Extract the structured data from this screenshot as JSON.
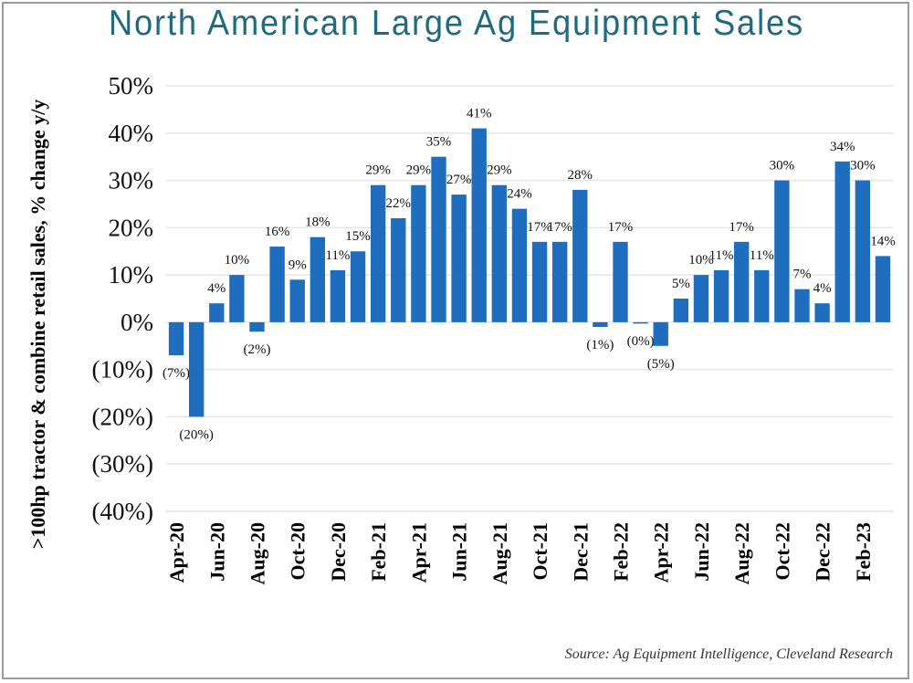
{
  "chart_data": {
    "type": "bar",
    "title": "North American Large Ag Equipment Sales",
    "xlabel": "",
    "ylabel": ">100hp tractor & combine retail sales, % change y/y",
    "source": "Source: Ag Equipment Intelligence, Cleveland Research",
    "ylim": [
      -40,
      50
    ],
    "y_ticks": [
      50,
      40,
      30,
      20,
      10,
      0,
      -10,
      -20,
      -30,
      -40
    ],
    "y_tick_labels": [
      "50%",
      "40%",
      "30%",
      "20%",
      "10%",
      "0%",
      "(10%)",
      "(20%)",
      "(30%)",
      "(40%)"
    ],
    "grid": true,
    "bar_color": "#1f6dbf",
    "categories": [
      "Apr-20",
      "May-20",
      "Jun-20",
      "Jul-20",
      "Aug-20",
      "Sep-20",
      "Oct-20",
      "Nov-20",
      "Dec-20",
      "Jan-21",
      "Feb-21",
      "Mar-21",
      "Apr-21",
      "May-21",
      "Jun-21",
      "Jul-21",
      "Aug-21",
      "Sep-21",
      "Oct-21",
      "Nov-21",
      "Dec-21",
      "Jan-22",
      "Feb-22",
      "Mar-22",
      "Apr-22",
      "May-22",
      "Jun-22",
      "Jul-22",
      "Aug-22",
      "Sep-22",
      "Oct-22",
      "Nov-22",
      "Dec-22",
      "Jan-23",
      "Feb-23",
      "Mar-23"
    ],
    "x_tick_labels": [
      "Apr-20",
      "Jun-20",
      "Aug-20",
      "Oct-20",
      "Dec-20",
      "Feb-21",
      "Apr-21",
      "Jun-21",
      "Aug-21",
      "Oct-21",
      "Dec-21",
      "Feb-22",
      "Apr-22",
      "Jun-22",
      "Aug-22",
      "Oct-22",
      "Dec-22",
      "Feb-23"
    ],
    "values": [
      -7,
      -20,
      4,
      10,
      -2,
      16,
      9,
      18,
      11,
      15,
      29,
      22,
      29,
      35,
      27,
      41,
      29,
      24,
      17,
      17,
      28,
      -1,
      17,
      -0.2,
      -5,
      5,
      10,
      11,
      17,
      11,
      30,
      7,
      4,
      34,
      30,
      14
    ],
    "data_labels": [
      "(7%)",
      "(20%)",
      "4%",
      "10%",
      "(2%)",
      "16%",
      "9%",
      "18%",
      "11%",
      "15%",
      "29%",
      "22%",
      "29%",
      "35%",
      "27%",
      "41%",
      "29%",
      "24%",
      "17%",
      "17%",
      "28%",
      "(1%)",
      "17%",
      "(0%)",
      "(5%)",
      "5%",
      "10%",
      "11%",
      "17%",
      "11%",
      "30%",
      "7%",
      "4%",
      "34%",
      "30%",
      "14%"
    ]
  }
}
